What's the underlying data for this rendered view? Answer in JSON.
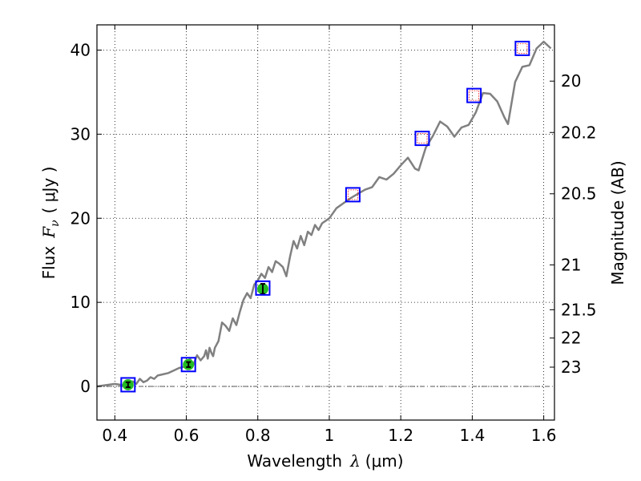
{
  "chart_data": {
    "type": "scatter",
    "title": "",
    "xlabel_text": "Wavelength",
    "xlabel_symbol": "λ",
    "xlabel_unit": "(μm)",
    "ylabel_text": "Flux",
    "ylabel_symbol": "F",
    "ylabel_sub": "ν",
    "ylabel_unit": "( μJy )",
    "y2label": "Magnitude (AB)",
    "xlim": [
      0.35,
      1.63
    ],
    "ylim": [
      -4,
      43
    ],
    "x_ticks": [
      0.4,
      0.6,
      0.8,
      1.0,
      1.2,
      1.4,
      1.6
    ],
    "x_tick_labels": [
      "0.4",
      "0.6",
      "0.8",
      "1",
      "1.2",
      "1.4",
      "1.6"
    ],
    "y_ticks": [
      0,
      10,
      20,
      30,
      40
    ],
    "y_tick_labels": [
      "0",
      "10",
      "20",
      "30",
      "40"
    ],
    "y2_tick_labels": [
      "20",
      "20.2",
      "20.5",
      "21",
      "21.5",
      "22",
      "23"
    ],
    "grid": true,
    "spectrum_color": "#808080",
    "zero_line_color": "#555555",
    "model_box_color": "#0000ff",
    "model_inner_color": "#ff0000",
    "observed_color": "#22bb22",
    "spectrum": {
      "x": [
        0.35,
        0.4,
        0.43,
        0.45,
        0.46,
        0.47,
        0.48,
        0.49,
        0.5,
        0.51,
        0.52,
        0.53,
        0.55,
        0.57,
        0.58,
        0.59,
        0.6,
        0.61,
        0.62,
        0.63,
        0.64,
        0.65,
        0.655,
        0.66,
        0.665,
        0.67,
        0.675,
        0.68,
        0.69,
        0.7,
        0.71,
        0.72,
        0.73,
        0.74,
        0.75,
        0.76,
        0.77,
        0.78,
        0.79,
        0.8,
        0.81,
        0.82,
        0.83,
        0.84,
        0.85,
        0.86,
        0.87,
        0.88,
        0.89,
        0.9,
        0.91,
        0.92,
        0.93,
        0.94,
        0.95,
        0.96,
        0.97,
        0.98,
        1.0,
        1.02,
        1.04,
        1.06,
        1.08,
        1.1,
        1.12,
        1.14,
        1.16,
        1.18,
        1.2,
        1.22,
        1.24,
        1.25,
        1.27,
        1.29,
        1.31,
        1.33,
        1.35,
        1.37,
        1.39,
        1.41,
        1.43,
        1.45,
        1.47,
        1.49,
        1.5,
        1.52,
        1.54,
        1.56,
        1.58,
        1.6,
        1.62
      ],
      "y": [
        0.0,
        0.3,
        0.1,
        0.6,
        0.3,
        0.9,
        0.5,
        0.7,
        1.1,
        0.9,
        1.3,
        1.4,
        1.6,
        2.0,
        2.2,
        2.3,
        2.4,
        3.3,
        2.6,
        3.7,
        3.1,
        3.6,
        4.3,
        3.3,
        4.6,
        4.0,
        3.6,
        4.6,
        5.4,
        7.6,
        7.2,
        6.6,
        8.1,
        7.3,
        8.9,
        10.3,
        11.1,
        10.5,
        12.1,
        12.6,
        13.4,
        12.9,
        14.2,
        13.6,
        14.9,
        14.6,
        14.2,
        13.1,
        15.4,
        17.3,
        16.4,
        17.9,
        16.8,
        18.4,
        18.0,
        19.2,
        18.6,
        19.4,
        20.0,
        21.2,
        21.8,
        22.4,
        22.9,
        23.4,
        23.7,
        24.9,
        24.6,
        25.3,
        26.3,
        27.2,
        25.9,
        25.7,
        28.4,
        29.8,
        31.5,
        30.9,
        29.7,
        30.8,
        31.1,
        32.6,
        34.9,
        34.8,
        33.9,
        32.0,
        31.2,
        36.2,
        38.0,
        38.2,
        40.2,
        41.0,
        40.2
      ]
    },
    "photometry": [
      {
        "x": 0.437,
        "model": 0.2,
        "observed": 0.2,
        "err": 0.3
      },
      {
        "x": 0.606,
        "model": 2.6,
        "observed": 2.6,
        "err": 0.3
      },
      {
        "x": 0.814,
        "model": 11.7,
        "observed": 11.6,
        "err": 0.6
      },
      {
        "x": 1.066,
        "model": 22.8,
        "observed": null,
        "err": null
      },
      {
        "x": 1.26,
        "model": 29.5,
        "observed": null,
        "err": null
      },
      {
        "x": 1.405,
        "model": 34.6,
        "observed": null,
        "err": null
      },
      {
        "x": 1.54,
        "model": 40.2,
        "observed": null,
        "err": null
      }
    ]
  }
}
